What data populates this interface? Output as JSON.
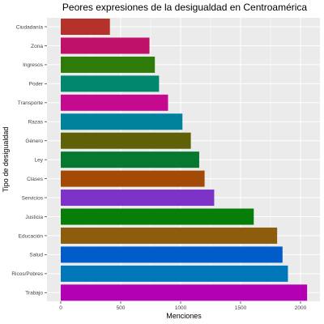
{
  "chart_data": {
    "type": "bar",
    "orientation": "horizontal",
    "title": "Peores expresiones de la desigualdad en Centroamérica",
    "xlabel": "Menciones",
    "ylabel": "Tipo de desigualdad",
    "categories": [
      "Ciudadanía",
      "Zona",
      "Ingresos",
      "Poder",
      "Transporte",
      "Razas",
      "Género",
      "Ley",
      "Clases",
      "Servicios",
      "Justicia",
      "Educación",
      "Salud",
      "Ricos/Pobres",
      "Trabajo"
    ],
    "values": [
      410,
      740,
      785,
      820,
      895,
      1015,
      1085,
      1155,
      1200,
      1280,
      1610,
      1805,
      1850,
      1895,
      2055
    ],
    "colors": [
      "#B5322A",
      "#C0116A",
      "#2E7B0A",
      "#00876E",
      "#C60A8F",
      "#00819C",
      "#5E6107",
      "#06782F",
      "#A34A06",
      "#7D33C8",
      "#067E07",
      "#8D5D0D",
      "#005CC9",
      "#0077B9",
      "#B300B4"
    ],
    "xlim": [
      0,
      2100
    ],
    "xticks": [
      0,
      500,
      1000,
      1500,
      2000
    ],
    "xtick_labels": [
      "0",
      "500",
      "1000",
      "1500",
      "2000"
    ],
    "grid": true,
    "panel_background": "#EBEBEB",
    "grid_color": "#FFFFFF"
  }
}
